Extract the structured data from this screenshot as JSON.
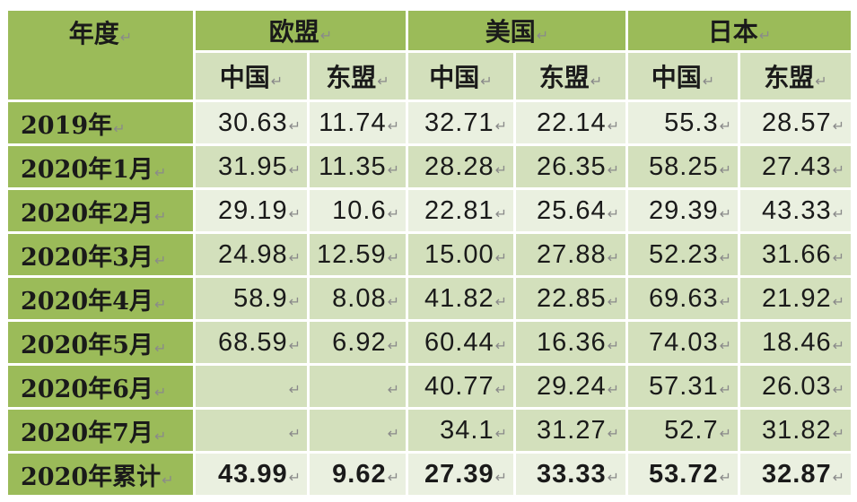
{
  "header": {
    "year_label": "年度",
    "groups": [
      "欧盟",
      "美国",
      "日本"
    ],
    "subcolumns": [
      "中国",
      "东盟"
    ]
  },
  "colors": {
    "header_green": "#9bbb59",
    "mid_green": "#d3e0bc",
    "light_green": "#eaf0e0"
  },
  "rows": [
    {
      "label": "2019年",
      "values": [
        "30.63",
        "11.74",
        "32.71",
        "22.14",
        "55.3",
        "28.57"
      ]
    },
    {
      "label": "2020年1月",
      "values": [
        "31.95",
        "11.35",
        "28.28",
        "26.35",
        "58.25",
        "27.43"
      ]
    },
    {
      "label": "2020年2月",
      "values": [
        "29.19",
        "10.6",
        "22.81",
        "25.64",
        "29.39",
        "43.33"
      ]
    },
    {
      "label": "2020年3月",
      "values": [
        "24.98",
        "12.59",
        "15.00",
        "27.88",
        "52.23",
        "31.66"
      ]
    },
    {
      "label": "2020年4月",
      "values": [
        "58.9",
        "8.08",
        "41.82",
        "22.85",
        "69.63",
        "21.92"
      ]
    },
    {
      "label": "2020年5月",
      "values": [
        "68.59",
        "6.92",
        "60.44",
        "16.36",
        "74.03",
        "18.46"
      ]
    },
    {
      "label": "2020年6月",
      "values": [
        "",
        "",
        "40.77",
        "29.24",
        "57.31",
        "26.03"
      ]
    },
    {
      "label": "2020年7月",
      "values": [
        "",
        "",
        "34.1",
        "31.27",
        "52.7",
        "31.82"
      ]
    },
    {
      "label": "2020年累计",
      "values": [
        "43.99",
        "9.62",
        "27.39",
        "33.33",
        "53.72",
        "32.87"
      ]
    }
  ]
}
